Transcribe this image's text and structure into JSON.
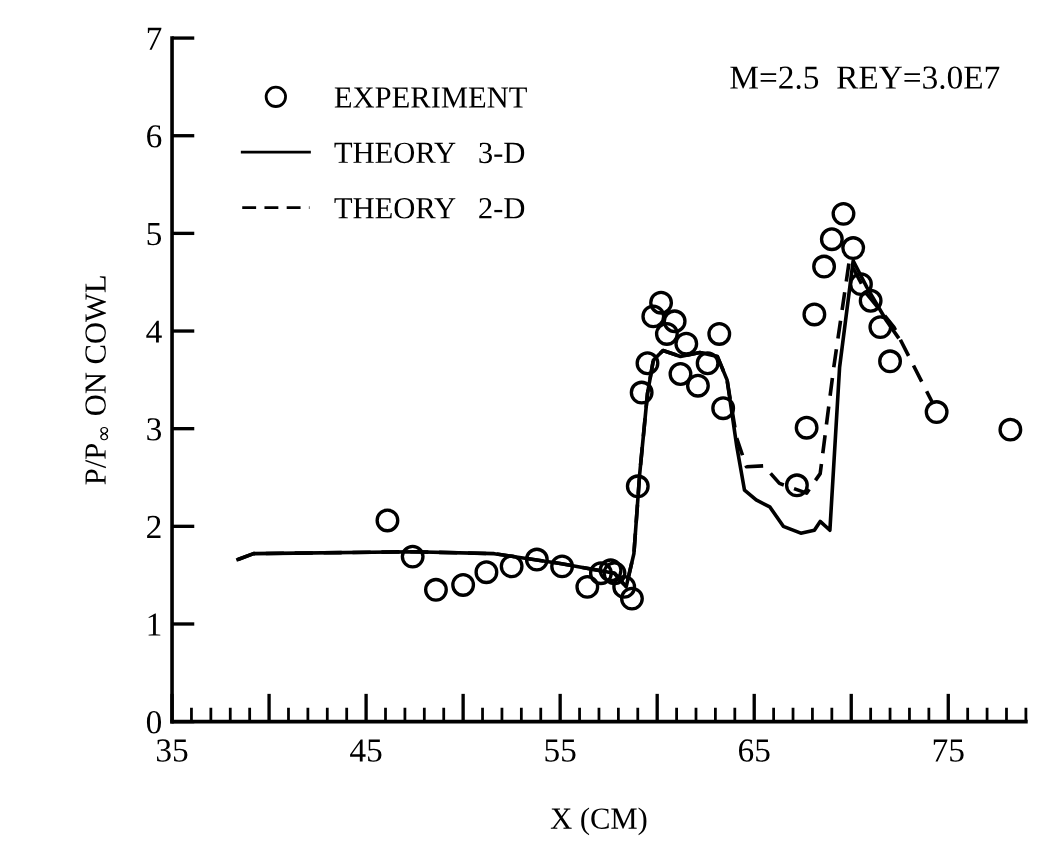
{
  "chart_data": {
    "type": "line",
    "xlabel": "X (CM)",
    "ylabel": "P/P$_{∞}$ ON COWL",
    "annotations": [
      "M=2.5  REY=3.0E7"
    ],
    "xlim": [
      35,
      79
    ],
    "ylim": [
      0,
      7
    ],
    "xticks": [
      35,
      {
        "value": 40,
        "label": null
      },
      45,
      {
        "value": 50,
        "label": null
      },
      55,
      {
        "value": 60,
        "label": null
      },
      65,
      {
        "value": 70,
        "label": null
      },
      75
    ],
    "yticks": [
      0,
      1,
      2,
      3,
      4,
      5,
      6,
      7
    ],
    "grid": false,
    "legend": "top left",
    "series": [
      {
        "name": "EXPERIMENT",
        "type": "scatter",
        "marker": "circle",
        "color": "#000000",
        "x": [
          46.1,
          47.4,
          48.6,
          50.0,
          51.2,
          52.5,
          53.8,
          55.1,
          56.4,
          57.1,
          57.8,
          58.3,
          58.7,
          57.6,
          59.0,
          59.2,
          59.5,
          59.8,
          60.2,
          60.5,
          60.9,
          61.2,
          61.5,
          62.1,
          62.6,
          63.2,
          63.4,
          67.2,
          67.7,
          68.1,
          68.6,
          69.0,
          69.6,
          70.1,
          70.5,
          71.0,
          71.5,
          72.0,
          74.4,
          78.2
        ],
        "values": [
          2.06,
          1.69,
          1.35,
          1.4,
          1.53,
          1.59,
          1.66,
          1.59,
          1.38,
          1.52,
          1.52,
          1.38,
          1.26,
          1.55,
          2.41,
          3.37,
          3.67,
          4.15,
          4.29,
          3.97,
          4.1,
          3.56,
          3.87,
          3.44,
          3.67,
          3.97,
          3.21,
          2.42,
          3.01,
          4.17,
          4.66,
          4.94,
          5.2,
          4.85,
          4.48,
          4.31,
          4.04,
          3.69,
          3.17,
          2.99
        ]
      },
      {
        "name": "THEORY   3-D",
        "line_style": "solid",
        "color": "#000000",
        "x": [
          38.4,
          39.2,
          47.4,
          51.6,
          55.0,
          57.8,
          58.4,
          58.8,
          59.1,
          59.5,
          59.8,
          60.3,
          61.2,
          62.2,
          63.1,
          63.6,
          64.1,
          64.5,
          65.1,
          65.8,
          66.5,
          67.4,
          68.1,
          68.4,
          68.9,
          69.4,
          70.1,
          70.8,
          71.8,
          72.4
        ],
        "values": [
          1.66,
          1.72,
          1.74,
          1.72,
          1.62,
          1.52,
          1.38,
          1.72,
          2.54,
          3.36,
          3.7,
          3.8,
          3.74,
          3.78,
          3.74,
          3.5,
          2.82,
          2.37,
          2.27,
          2.2,
          2.0,
          1.93,
          1.96,
          2.05,
          1.96,
          3.63,
          4.72,
          4.45,
          4.11,
          3.94
        ]
      },
      {
        "name": "THEORY   2-D",
        "line_style": "dashed",
        "color": "#000000",
        "x": [
          38.4,
          39.2,
          47.4,
          51.6,
          55.0,
          57.8,
          58.4,
          58.8,
          59.1,
          59.5,
          59.8,
          60.3,
          61.2,
          62.2,
          63.1,
          63.6,
          64.1,
          64.6,
          65.5,
          66.3,
          67.7,
          68.4,
          69.1,
          69.9,
          70.8,
          72.2,
          74.2
        ],
        "values": [
          1.66,
          1.72,
          1.74,
          1.72,
          1.62,
          1.52,
          1.38,
          1.72,
          2.54,
          3.36,
          3.7,
          3.8,
          3.74,
          3.78,
          3.74,
          3.5,
          2.9,
          2.61,
          2.62,
          2.44,
          2.34,
          2.54,
          3.63,
          4.72,
          4.38,
          4.04,
          3.26
        ]
      }
    ]
  }
}
